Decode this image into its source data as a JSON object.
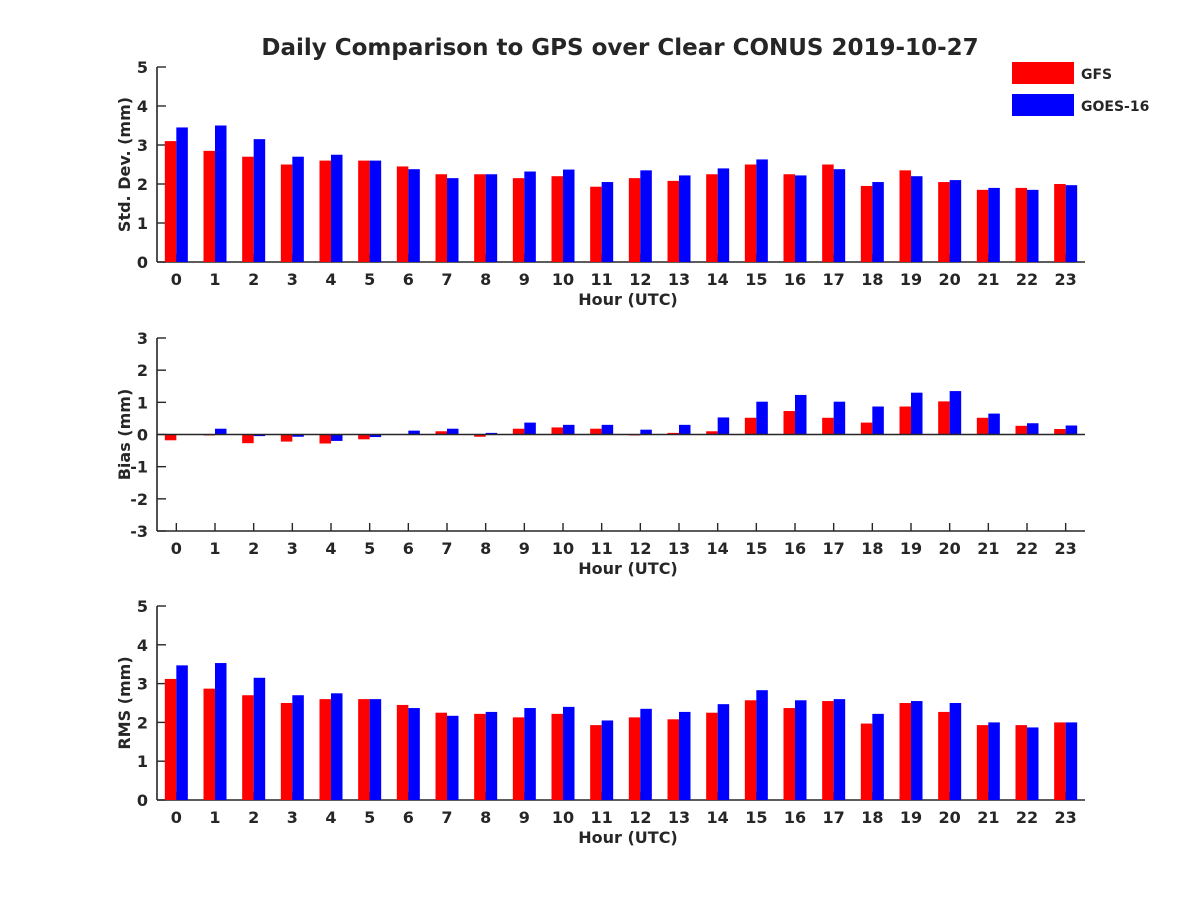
{
  "title": "Daily Comparison to GPS over Clear CONUS 2019-10-27",
  "legend": {
    "items": [
      {
        "name": "GFS",
        "color": "#ff0000"
      },
      {
        "name": "GOES-16",
        "color": "#0000ff"
      }
    ],
    "placement": "top-right"
  },
  "chart_data": [
    {
      "type": "bar",
      "ylabel": "Std. Dev. (mm)",
      "xlabel": "Hour (UTC)",
      "ylim": [
        0,
        5
      ],
      "yticks": [
        0,
        1,
        2,
        3,
        4,
        5
      ],
      "categories": [
        "0",
        "1",
        "2",
        "3",
        "4",
        "5",
        "6",
        "7",
        "8",
        "9",
        "10",
        "11",
        "12",
        "13",
        "14",
        "15",
        "16",
        "17",
        "18",
        "19",
        "20",
        "21",
        "22",
        "23"
      ],
      "series": [
        {
          "name": "GFS",
          "color": "#ff0000",
          "values": [
            3.1,
            2.85,
            2.7,
            2.5,
            2.6,
            2.6,
            2.45,
            2.25,
            2.25,
            2.15,
            2.2,
            1.93,
            2.15,
            2.08,
            2.25,
            2.5,
            2.25,
            2.5,
            1.95,
            2.35,
            2.05,
            1.85,
            1.9,
            2.0
          ]
        },
        {
          "name": "GOES-16",
          "color": "#0000ff",
          "values": [
            3.45,
            3.5,
            3.15,
            2.7,
            2.75,
            2.6,
            2.38,
            2.15,
            2.25,
            2.32,
            2.37,
            2.05,
            2.35,
            2.22,
            2.4,
            2.63,
            2.22,
            2.38,
            2.05,
            2.2,
            2.1,
            1.9,
            1.85,
            1.97
          ]
        }
      ]
    },
    {
      "type": "bar",
      "ylabel": "Bias (mm)",
      "xlabel": "Hour (UTC)",
      "ylim": [
        -3,
        3
      ],
      "yticks": [
        -3,
        -2,
        -1,
        0,
        1,
        2,
        3
      ],
      "categories": [
        "0",
        "1",
        "2",
        "3",
        "4",
        "5",
        "6",
        "7",
        "8",
        "9",
        "10",
        "11",
        "12",
        "13",
        "14",
        "15",
        "16",
        "17",
        "18",
        "19",
        "20",
        "21",
        "22",
        "23"
      ],
      "series": [
        {
          "name": "GFS",
          "color": "#ff0000",
          "values": [
            -0.18,
            -0.03,
            -0.27,
            -0.22,
            -0.28,
            -0.15,
            0.0,
            0.1,
            -0.07,
            0.18,
            0.22,
            0.18,
            -0.03,
            0.05,
            0.1,
            0.52,
            0.73,
            0.52,
            0.37,
            0.87,
            1.03,
            0.52,
            0.27,
            0.17
          ]
        },
        {
          "name": "GOES-16",
          "color": "#0000ff",
          "values": [
            0.0,
            0.18,
            -0.05,
            -0.07,
            -0.2,
            -0.08,
            0.12,
            0.18,
            0.05,
            0.37,
            0.3,
            0.3,
            0.15,
            0.3,
            0.53,
            1.02,
            1.23,
            1.02,
            0.87,
            1.3,
            1.35,
            0.65,
            0.35,
            0.28
          ]
        }
      ]
    },
    {
      "type": "bar",
      "ylabel": "RMS (mm)",
      "xlabel": "Hour (UTC)",
      "ylim": [
        0,
        5
      ],
      "yticks": [
        0,
        1,
        2,
        3,
        4,
        5
      ],
      "categories": [
        "0",
        "1",
        "2",
        "3",
        "4",
        "5",
        "6",
        "7",
        "8",
        "9",
        "10",
        "11",
        "12",
        "13",
        "14",
        "15",
        "16",
        "17",
        "18",
        "19",
        "20",
        "21",
        "22",
        "23"
      ],
      "series": [
        {
          "name": "GFS",
          "color": "#ff0000",
          "values": [
            3.12,
            2.87,
            2.7,
            2.5,
            2.6,
            2.6,
            2.45,
            2.25,
            2.22,
            2.13,
            2.22,
            1.93,
            2.13,
            2.08,
            2.25,
            2.57,
            2.37,
            2.55,
            1.97,
            2.5,
            2.27,
            1.93,
            1.93,
            2.0
          ]
        },
        {
          "name": "GOES-16",
          "color": "#0000ff",
          "values": [
            3.47,
            3.53,
            3.15,
            2.7,
            2.75,
            2.6,
            2.37,
            2.17,
            2.27,
            2.37,
            2.4,
            2.05,
            2.35,
            2.27,
            2.47,
            2.83,
            2.57,
            2.6,
            2.22,
            2.55,
            2.5,
            2.0,
            1.87,
            2.0
          ]
        }
      ]
    }
  ]
}
